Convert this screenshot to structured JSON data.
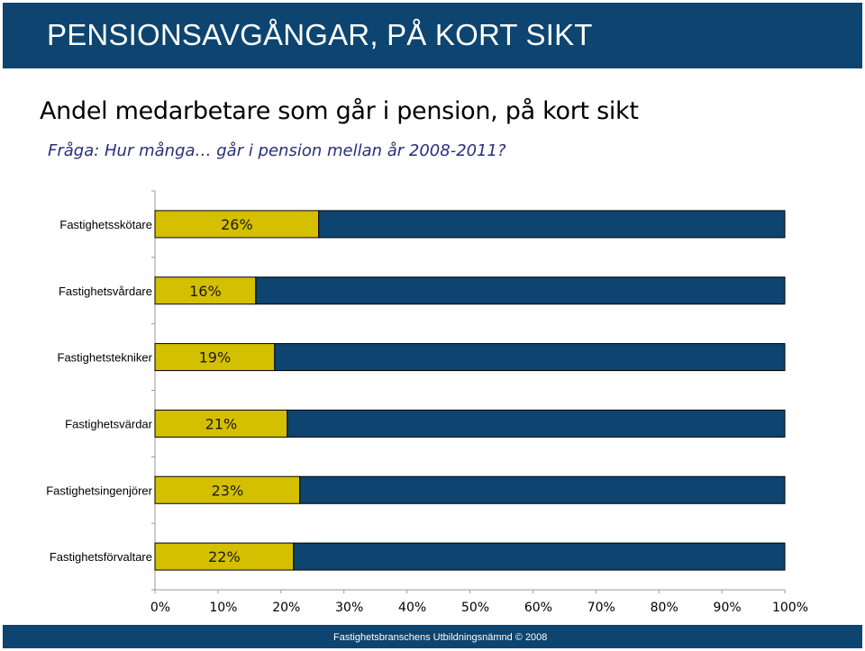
{
  "header": {
    "title": "PENSIONSAVGÅNGAR, PÅ KORT SIKT"
  },
  "subtitle": "Andel medarbetare som går i pension, på kort sikt",
  "question": "Fråga: Hur många… går i pension mellan år 2008-2011?",
  "footer": "Fastighetsbranschens Utbildningsnämnd © 2008",
  "colors": {
    "header_bg": "#0d4470",
    "bar_retire": "#d4bf00",
    "bar_rest": "#0d4470"
  },
  "chart_data": {
    "type": "bar",
    "orientation": "horizontal",
    "stacked": true,
    "categories": [
      "Fastighetsskötare",
      "Fastighetsvårdare",
      "Fastighetstekniker",
      "Fastighetsvärdar",
      "Fastighetsingenjörer",
      "Fastighetsförvaltare"
    ],
    "series": [
      {
        "values": [
          26,
          16,
          19,
          21,
          23,
          22
        ],
        "color": "#d4bf00"
      },
      {
        "values": [
          74,
          84,
          81,
          79,
          77,
          78
        ],
        "color": "#0d4470"
      }
    ],
    "data_labels": [
      "26%",
      "16%",
      "19%",
      "21%",
      "23%",
      "22%"
    ],
    "xlim": [
      0,
      100
    ],
    "x_ticks": [
      "0%",
      "10%",
      "20%",
      "30%",
      "40%",
      "50%",
      "60%",
      "70%",
      "80%",
      "90%",
      "100%"
    ],
    "grid": false,
    "legend": "none"
  }
}
